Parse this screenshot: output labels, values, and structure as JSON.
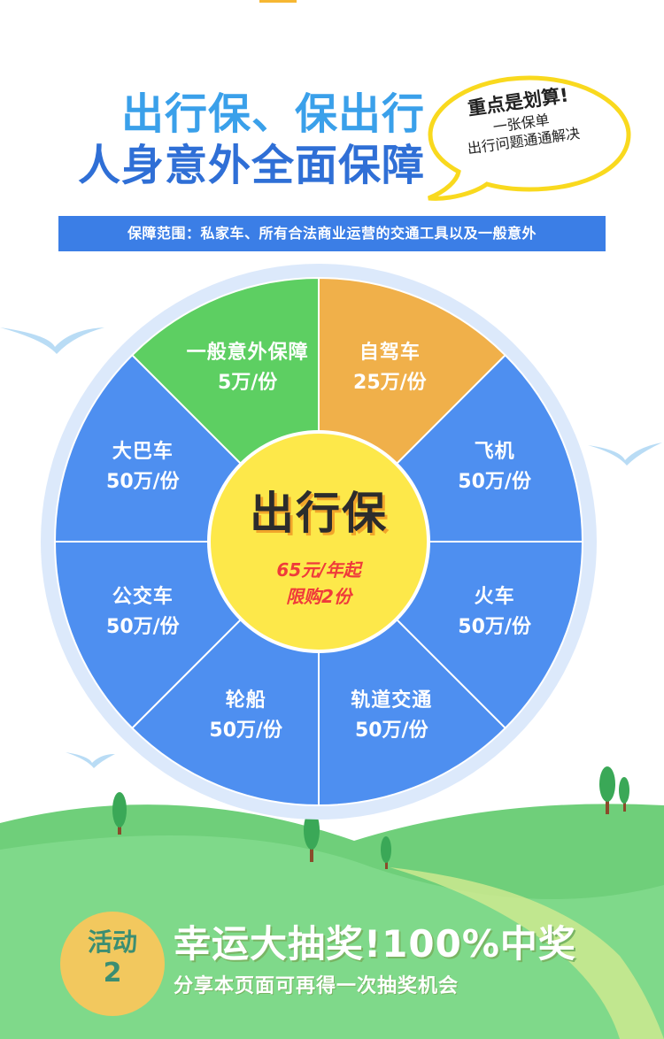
{
  "headline": {
    "line1": "出行保、保出行",
    "line2": "人身意外全面保障"
  },
  "bubble": {
    "title": "重点是划算!",
    "line1": "一张保单",
    "line2": "出行问题通通解决"
  },
  "scope": "保障范围：私家车、所有合法商业运营的交通工具以及一般意外",
  "colors": {
    "blue": "#4e8ff0",
    "green": "#5dcf62",
    "orange": "#f0b04a",
    "center_yellow": "#fde84a",
    "accent_red": "#ef3b3b"
  },
  "wheel": {
    "slices": [
      {
        "name": "一般意外保障",
        "price": "5万/份",
        "color": "green"
      },
      {
        "name": "自驾车",
        "price": "25万/份",
        "color": "orange"
      },
      {
        "name": "飞机",
        "price": "50万/份",
        "color": "blue"
      },
      {
        "name": "火车",
        "price": "50万/份",
        "color": "blue"
      },
      {
        "name": "轨道交通",
        "price": "50万/份",
        "color": "blue"
      },
      {
        "name": "轮船",
        "price": "50万/份",
        "color": "blue"
      },
      {
        "name": "公交车",
        "price": "50万/份",
        "color": "blue"
      },
      {
        "name": "大巴车",
        "price": "50万/份",
        "color": "blue"
      }
    ],
    "center": {
      "title": "出行保",
      "line1": "65元/年起",
      "line2": "限购2份"
    }
  },
  "activity": {
    "badge_label": "活动",
    "badge_number": "2",
    "title": "幸运大抽奖!100%中奖",
    "subtitle": "分享本页面可再得一次抽奖机会"
  }
}
